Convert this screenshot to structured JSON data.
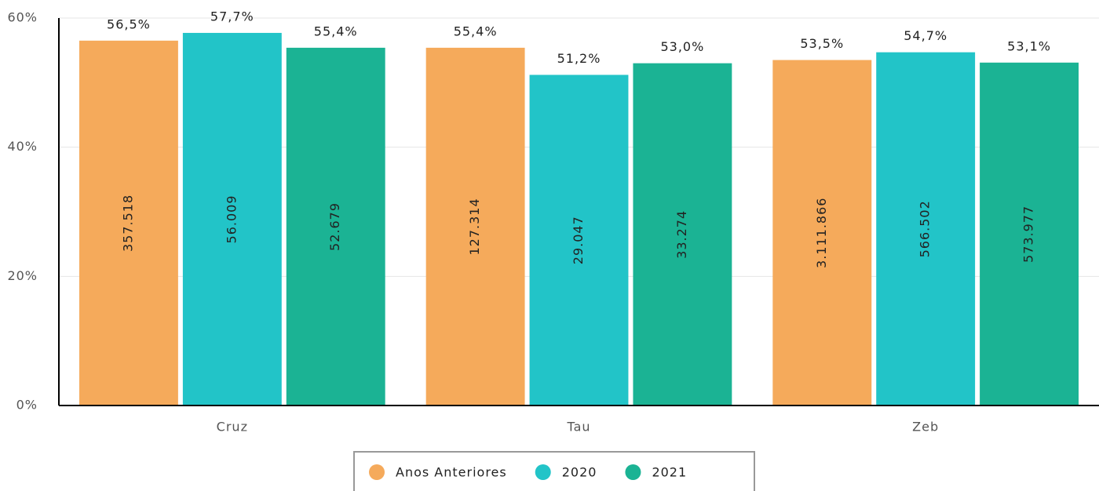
{
  "chart_data": {
    "type": "bar",
    "categories": [
      "Cruz",
      "Tau",
      "Zeb"
    ],
    "series": [
      {
        "name": "Anos Anteriores",
        "color": "#f5aa5b",
        "values": [
          56.5,
          55.4,
          53.5
        ],
        "value_labels": [
          "56,5%",
          "55,4%",
          "53,5%"
        ],
        "counts": [
          357518,
          127314,
          3111866
        ],
        "count_labels": [
          "357.518",
          "127.314",
          "3.111.866"
        ]
      },
      {
        "name": "2020",
        "color": "#22c4c8",
        "values": [
          57.7,
          51.2,
          54.7
        ],
        "value_labels": [
          "57,7%",
          "51,2%",
          "54,7%"
        ],
        "counts": [
          56009,
          29047,
          566502
        ],
        "count_labels": [
          "56.009",
          "29.047",
          "566.502"
        ]
      },
      {
        "name": "2021",
        "color": "#1bb394",
        "values": [
          55.4,
          53.0,
          53.1
        ],
        "value_labels": [
          "55,4%",
          "53,0%",
          "53,1%"
        ],
        "counts": [
          52679,
          33274,
          573977
        ],
        "count_labels": [
          "52.679",
          "33.274",
          "573.977"
        ]
      }
    ],
    "ylim": [
      0,
      60
    ],
    "yticks": [
      {
        "value": 0,
        "label": "0%"
      },
      {
        "value": 20,
        "label": "20%"
      },
      {
        "value": 40,
        "label": "40%"
      },
      {
        "value": 60,
        "label": "60%"
      }
    ],
    "grid": true
  }
}
